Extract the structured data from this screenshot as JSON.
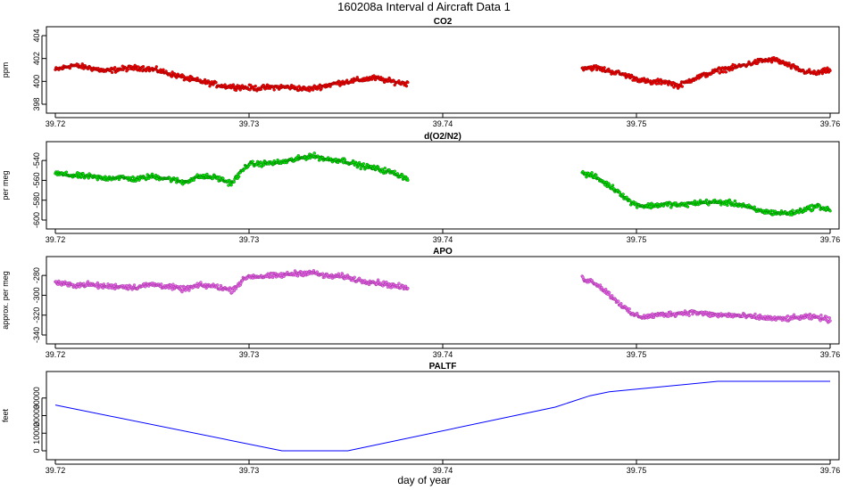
{
  "title": "160208a   Interval d Aircraft Data 1",
  "xlabel": "day of year",
  "chart_data": [
    {
      "type": "scatter",
      "title": "CO2",
      "ylabel": "ppm",
      "color": "#ff0000",
      "outline": "#7a0000",
      "xlim": [
        39.72,
        39.76
      ],
      "ylim": [
        398,
        404
      ],
      "xticks": [
        "39.72",
        "39.73",
        "39.74",
        "39.75",
        "39.76"
      ],
      "yticks": [
        "398",
        "400",
        "402",
        "404"
      ],
      "series": [
        {
          "x_start": 39.72,
          "x_end": 39.7382,
          "y": [
            401.0,
            401.4,
            401.2,
            400.9,
            401.1,
            401.2,
            401.0,
            400.6,
            400.2,
            399.9,
            399.6,
            399.5,
            399.4,
            399.5,
            399.5,
            399.3,
            399.6,
            399.9,
            400.1,
            400.3,
            400.0,
            399.8
          ]
        },
        {
          "x_start": 39.7472,
          "x_end": 39.76,
          "y": [
            401.2,
            401.2,
            400.9,
            400.6,
            400.2,
            399.9,
            400.0,
            399.6,
            400.2,
            400.6,
            401.0,
            401.2,
            401.5,
            401.8,
            401.9,
            401.4,
            400.9,
            400.7,
            401.0
          ]
        }
      ]
    },
    {
      "type": "scatter",
      "title": "d(O2/N2)",
      "ylabel": "per meg",
      "color": "#00ee00",
      "outline": "#005500",
      "xlim": [
        39.72,
        39.76
      ],
      "ylim": [
        -600,
        -530
      ],
      "xticks": [
        "39.72",
        "39.73",
        "39.74",
        "39.75",
        "39.76"
      ],
      "yticks": [
        "-600",
        "-580",
        "-560",
        "-540"
      ],
      "series": [
        {
          "x_start": 39.72,
          "x_end": 39.7382,
          "y": [
            -553,
            -555,
            -556,
            -558,
            -557,
            -559,
            -556,
            -558,
            -562,
            -556,
            -557,
            -563,
            -544,
            -543,
            -542,
            -539,
            -535,
            -539,
            -540,
            -545,
            -548,
            -552,
            -558
          ]
        },
        {
          "x_start": 39.7472,
          "x_end": 39.76,
          "y": [
            -553,
            -556,
            -564,
            -572,
            -583,
            -586,
            -585,
            -584,
            -585,
            -583,
            -582,
            -582,
            -583,
            -585,
            -590,
            -592,
            -593,
            -593,
            -589,
            -586,
            -590
          ]
        }
      ]
    },
    {
      "type": "scatter",
      "title": "APO",
      "ylabel": "approx. per meg",
      "color": "#ee66ee",
      "outline": "#8a2c8a",
      "xlim": [
        39.72,
        39.76
      ],
      "ylim": [
        -340,
        -270
      ],
      "xticks": [
        "39.72",
        "39.73",
        "39.74",
        "39.75",
        "39.76"
      ],
      "yticks": [
        "-340",
        "-320",
        "-300",
        "-280"
      ],
      "series": [
        {
          "x_start": 39.72,
          "x_end": 39.7382,
          "y": [
            -287,
            -290,
            -289,
            -291,
            -291,
            -292,
            -289,
            -291,
            -294,
            -290,
            -291,
            -295,
            -281,
            -281,
            -280,
            -278,
            -277,
            -281,
            -281,
            -285,
            -287,
            -290,
            -293
          ]
        },
        {
          "x_start": 39.7472,
          "x_end": 39.76,
          "y": [
            -283,
            -287,
            -297,
            -308,
            -319,
            -322,
            -320,
            -319,
            -318,
            -317,
            -319,
            -320,
            -320,
            -321,
            -322,
            -323,
            -324,
            -323,
            -322,
            -322,
            -325
          ]
        }
      ]
    },
    {
      "type": "line",
      "title": "PALTF",
      "ylabel": "feet",
      "color": "#0000ff",
      "xlim": [
        39.72,
        39.76
      ],
      "ylim": [
        0,
        40000
      ],
      "xticks": [
        "39.72",
        "39.73",
        "39.74",
        "39.75",
        "39.76"
      ],
      "yticks": [
        "0",
        "10000",
        "20000",
        "30000"
      ],
      "series": [
        {
          "x": [
            39.72,
            39.7317,
            39.7351,
            39.7458,
            39.7476,
            39.7486,
            39.7542,
            39.76
          ],
          "y": [
            26000,
            0,
            0,
            24800,
            31300,
            33500,
            39500,
            39500
          ]
        }
      ]
    }
  ]
}
